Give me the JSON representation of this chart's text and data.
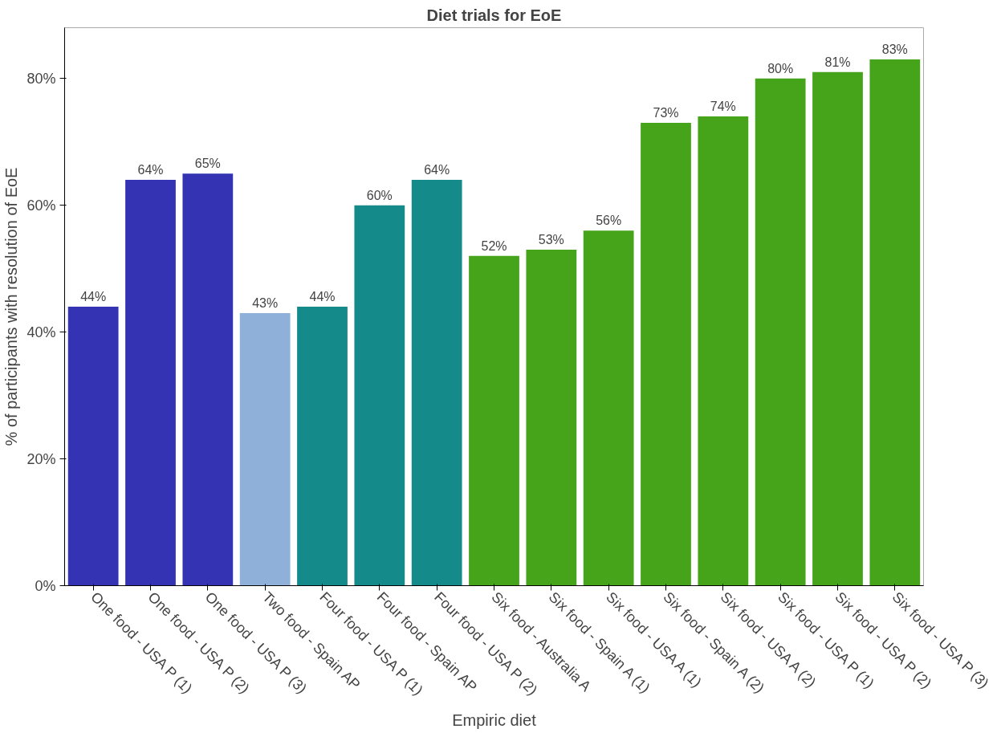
{
  "chart_data": {
    "type": "bar",
    "title": "Diet trials for EoE",
    "xlabel": "Empiric diet",
    "ylabel": "% of participants with resolution of EoE",
    "categories": [
      "One food - USA P (1)",
      "One food - USA P (2)",
      "One food - USA P (3)",
      "Two food - Spain AP",
      "Four food - USA P (1)",
      "Four food - Spain AP",
      "Four food - USA P (2)",
      "Six food - Australia A",
      "Six food - Spain A (1)",
      "Six food - USA A (1)",
      "Six food - Spain A (2)",
      "Six food - USA A (2)",
      "Six food - USA P (1)",
      "Six food - USA P (2)",
      "Six food - USA P (3)"
    ],
    "values": [
      44,
      64,
      65,
      43,
      44,
      60,
      64,
      52,
      53,
      56,
      73,
      74,
      80,
      81,
      83
    ],
    "colors": [
      "#3333b3",
      "#3333b3",
      "#3333b3",
      "#8fb0d9",
      "#158a8a",
      "#158a8a",
      "#158a8a",
      "#46a41a",
      "#46a41a",
      "#46a41a",
      "#46a41a",
      "#46a41a",
      "#46a41a",
      "#46a41a",
      "#46a41a"
    ],
    "value_labels": [
      "44%",
      "64%",
      "65%",
      "43%",
      "44%",
      "60%",
      "64%",
      "52%",
      "53%",
      "56%",
      "73%",
      "74%",
      "80%",
      "81%",
      "83%"
    ],
    "ylim": [
      0,
      88
    ],
    "yticks": [
      {
        "value": 0,
        "label": "0%"
      },
      {
        "value": 20,
        "label": "20%"
      },
      {
        "value": 40,
        "label": "40%"
      },
      {
        "value": 60,
        "label": "60%"
      },
      {
        "value": 80,
        "label": "80%"
      }
    ],
    "grid": false
  }
}
